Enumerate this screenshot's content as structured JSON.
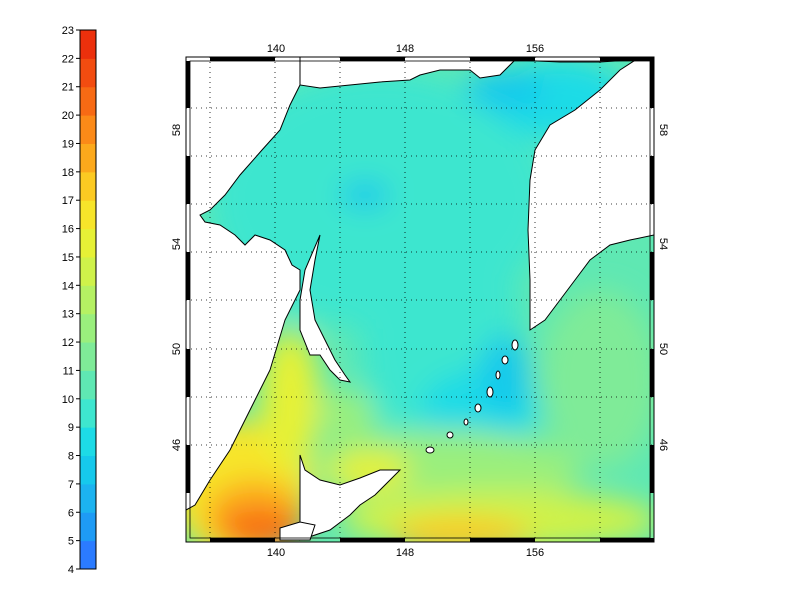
{
  "colorbar": {
    "min": 4,
    "max": 23,
    "labels": [
      "4",
      "5",
      "6",
      "7",
      "8",
      "9",
      "10",
      "11",
      "12",
      "13",
      "14",
      "15",
      "16",
      "17",
      "18",
      "19",
      "20",
      "21",
      "22",
      "23"
    ],
    "colors": [
      "#2b7bff",
      "#1e9bf5",
      "#1cb3f0",
      "#16c9ec",
      "#1ddbe6",
      "#3ee6cf",
      "#5fe8b3",
      "#7feb98",
      "#9aef7d",
      "#b5f163",
      "#cff24a",
      "#e6f136",
      "#f7e52a",
      "#fcca22",
      "#fca91c",
      "#fb8a18",
      "#f76a14",
      "#f24c10",
      "#ec300c"
    ]
  },
  "axes": {
    "x_ticks": [
      "140",
      "148",
      "156"
    ],
    "y_ticks": [
      "46",
      "50",
      "54",
      "58"
    ],
    "lon_range": [
      134,
      163
    ],
    "lat_range": [
      42,
      61
    ],
    "grid": true
  },
  "map": {
    "land_color": "#ffffff",
    "coast_color": "#000000"
  }
}
